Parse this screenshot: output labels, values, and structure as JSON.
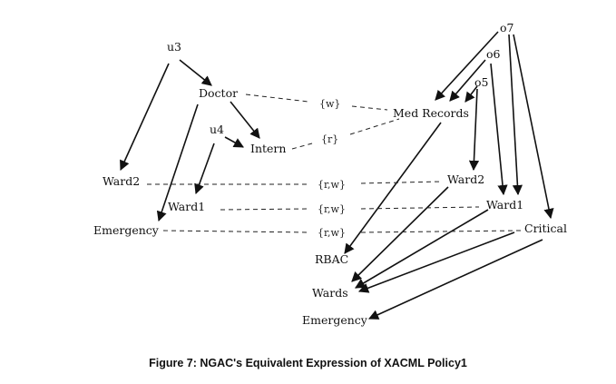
{
  "diagram": {
    "nodes": {
      "u3": "u3",
      "u4": "u4",
      "doctor": "Doctor",
      "intern": "Intern",
      "ward2_left": "Ward2",
      "ward1_left": "Ward1",
      "emergency_left": "Emergency",
      "o7": "o7",
      "o6": "o6",
      "o5": "o5",
      "med_records": "Med Records",
      "ward2_right": "Ward2",
      "ward1_right": "Ward1",
      "critical": "Critical",
      "rbac": "RBAC",
      "wards": "Wards",
      "emergency_bottom": "Emergency"
    },
    "edge_labels": {
      "doctor_med": "{w}",
      "intern_med": "{r}",
      "ward2_assoc": "{r,w}",
      "ward1_assoc": "{r,w}",
      "emergency_assoc": "{r,w}"
    }
  },
  "caption": "Figure 7: NGAC's Equivalent Expression of XACML Policy1"
}
